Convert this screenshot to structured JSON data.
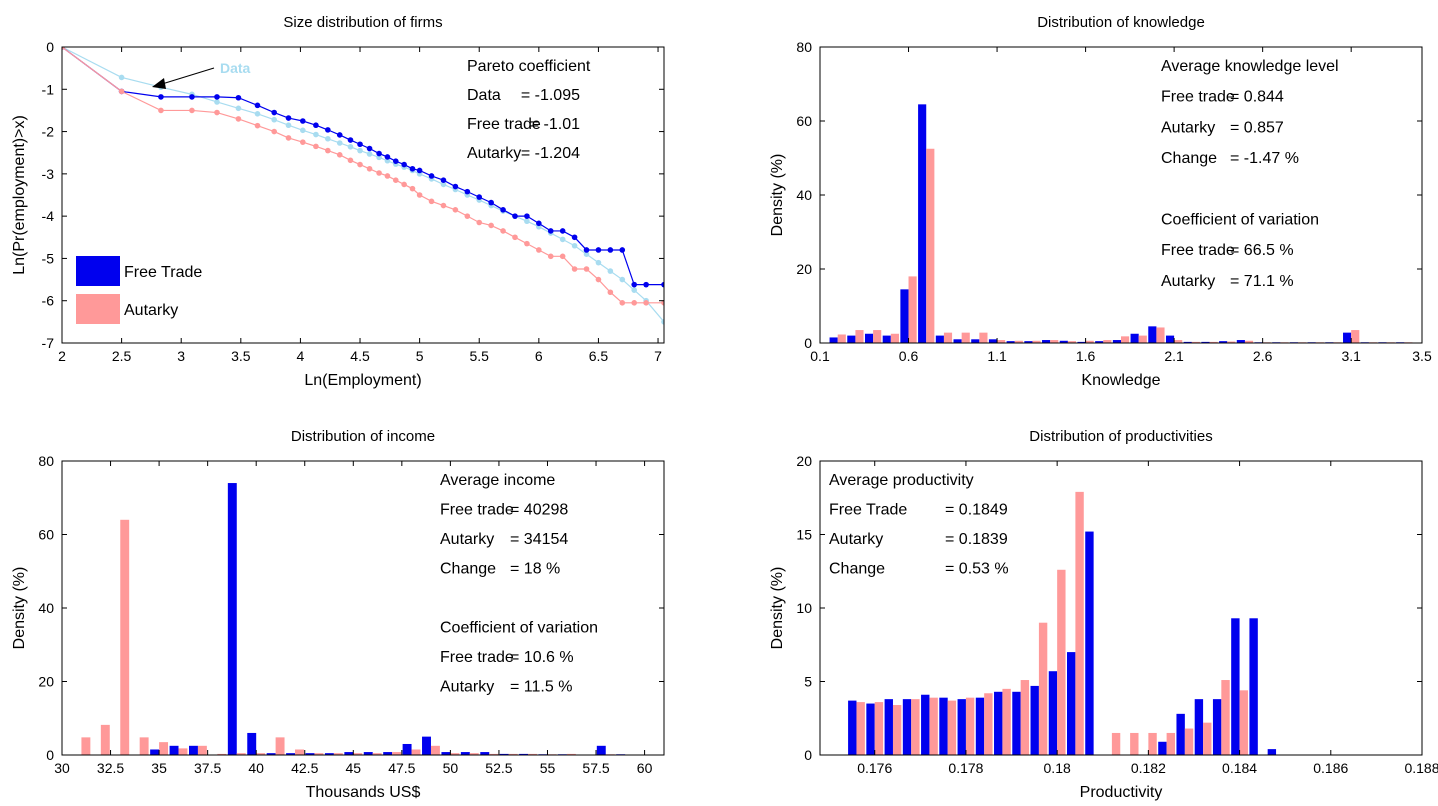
{
  "colors": {
    "free_trade": "#0000ee",
    "autarky": "#ff9999",
    "data": "#a8dcf0"
  },
  "chart_data": [
    {
      "id": "size",
      "type": "line",
      "title": "Size distribution of firms",
      "xlabel": "Ln(Employment)",
      "ylabel": "Ln(Pr(employment)>x)",
      "xlim": [
        2,
        7.05
      ],
      "ylim": [
        -7,
        0
      ],
      "xticks": [
        2,
        2.5,
        3,
        3.5,
        4,
        4.5,
        5,
        5.5,
        6,
        6.5,
        7
      ],
      "xtick_labels": [
        "2",
        "2.5",
        "3",
        "3.5",
        "4",
        "4.5",
        "5",
        "5.5",
        "6",
        "6.5",
        "7"
      ],
      "yticks": [
        0,
        -1,
        -2,
        -3,
        -4,
        -5,
        -6,
        -7
      ],
      "ytick_labels": [
        "0",
        "-1",
        "-2",
        "-3",
        "-4",
        "-5",
        "-6",
        "-7"
      ],
      "legend": {
        "placement": "bottom-left",
        "entries": [
          "Free Trade",
          "Autarky"
        ]
      },
      "arrow_label": "Data",
      "series": [
        {
          "name": "Data",
          "color_key": "data",
          "style": "marker-line",
          "x": [
            2,
            2.5,
            2.83,
            3.09,
            3.3,
            3.48,
            3.64,
            3.78,
            3.9,
            4.02,
            4.13,
            4.23,
            4.33,
            4.42,
            4.5,
            4.58,
            4.66,
            4.73,
            4.8,
            4.87,
            4.94,
            5.0,
            5.1,
            5.2,
            5.3,
            5.4,
            5.5,
            5.6,
            5.7,
            5.8,
            5.9,
            6.0,
            6.1,
            6.2,
            6.3,
            6.4,
            6.5,
            6.6,
            6.7,
            6.8,
            6.9,
            7.05
          ],
          "y": [
            0,
            -0.72,
            -0.95,
            -1.12,
            -1.3,
            -1.45,
            -1.58,
            -1.72,
            -1.85,
            -1.97,
            -2.07,
            -2.17,
            -2.27,
            -2.36,
            -2.45,
            -2.53,
            -2.61,
            -2.69,
            -2.77,
            -2.84,
            -2.92,
            -3.0,
            -3.12,
            -3.25,
            -3.37,
            -3.5,
            -3.62,
            -3.75,
            -3.88,
            -4.0,
            -4.12,
            -4.25,
            -4.4,
            -4.55,
            -4.7,
            -4.9,
            -5.1,
            -5.3,
            -5.5,
            -5.75,
            -6.0,
            -6.5
          ]
        },
        {
          "name": "Free Trade",
          "color_key": "free_trade",
          "style": "step-marker",
          "x": [
            2,
            2.5,
            2.83,
            3.09,
            3.3,
            3.48,
            3.64,
            3.78,
            3.9,
            4.02,
            4.13,
            4.23,
            4.33,
            4.42,
            4.5,
            4.58,
            4.66,
            4.73,
            4.8,
            4.87,
            4.94,
            5.0,
            5.1,
            5.2,
            5.3,
            5.4,
            5.5,
            5.6,
            5.7,
            5.8,
            5.9,
            6.0,
            6.1,
            6.2,
            6.3,
            6.4,
            6.5,
            6.6,
            6.7,
            6.8,
            6.9,
            7.05
          ],
          "y": [
            0,
            -1.05,
            -1.18,
            -1.18,
            -1.18,
            -1.2,
            -1.38,
            -1.55,
            -1.68,
            -1.75,
            -1.85,
            -1.96,
            -2.08,
            -2.2,
            -2.3,
            -2.4,
            -2.52,
            -2.6,
            -2.7,
            -2.78,
            -2.88,
            -2.92,
            -3.05,
            -3.15,
            -3.3,
            -3.42,
            -3.55,
            -3.68,
            -3.85,
            -4.0,
            -4.0,
            -4.17,
            -4.35,
            -4.35,
            -4.5,
            -4.8,
            -4.8,
            -4.8,
            -4.8,
            -5.62,
            -5.62,
            -5.62
          ]
        },
        {
          "name": "Autarky",
          "color_key": "autarky",
          "style": "step-marker",
          "x": [
            2,
            2.5,
            2.83,
            3.09,
            3.3,
            3.48,
            3.64,
            3.78,
            3.9,
            4.02,
            4.13,
            4.23,
            4.33,
            4.42,
            4.5,
            4.58,
            4.66,
            4.73,
            4.8,
            4.87,
            4.94,
            5.0,
            5.1,
            5.2,
            5.3,
            5.4,
            5.5,
            5.6,
            5.7,
            5.8,
            5.9,
            6.0,
            6.1,
            6.2,
            6.3,
            6.4,
            6.5,
            6.6,
            6.7,
            6.8,
            6.9,
            7.05
          ],
          "y": [
            0,
            -1.05,
            -1.5,
            -1.5,
            -1.55,
            -1.7,
            -1.86,
            -2.0,
            -2.15,
            -2.25,
            -2.35,
            -2.45,
            -2.55,
            -2.68,
            -2.78,
            -2.88,
            -2.98,
            -3.05,
            -3.15,
            -3.25,
            -3.35,
            -3.5,
            -3.65,
            -3.75,
            -3.85,
            -4.0,
            -4.15,
            -4.22,
            -4.35,
            -4.5,
            -4.65,
            -4.8,
            -4.95,
            -4.95,
            -5.25,
            -5.25,
            -5.5,
            -5.8,
            -6.05,
            -6.05,
            -6.05,
            -6.05
          ]
        }
      ],
      "annotation_lines": [
        [
          "Pareto coefficient",
          ""
        ],
        [
          "Data",
          "= -1.095"
        ],
        [
          "Free trade",
          "= -1.01"
        ],
        [
          "Autarky",
          "= -1.204"
        ]
      ]
    },
    {
      "id": "knowledge",
      "type": "bar",
      "title": "Distribution of knowledge",
      "xlabel": "Knowledge",
      "ylabel": "Density (%)",
      "xlim": [
        0.1,
        3.5
      ],
      "ylim": [
        0,
        80
      ],
      "xticks": [
        0.1,
        0.6,
        1.1,
        1.6,
        2.1,
        2.6,
        3.1,
        3.5
      ],
      "xtick_labels": [
        "0.1",
        "0.6",
        "1.1",
        "1.6",
        "2.1",
        "2.6",
        "3.1",
        "3.5"
      ],
      "yticks": [
        0,
        20,
        40,
        60,
        80
      ],
      "ytick_labels": [
        "0",
        "20",
        "40",
        "60",
        "80"
      ],
      "bin_width": 0.1,
      "bin_centers": [
        0.2,
        0.3,
        0.4,
        0.5,
        0.6,
        0.7,
        0.8,
        0.9,
        1.0,
        1.1,
        1.2,
        1.3,
        1.4,
        1.5,
        1.6,
        1.7,
        1.8,
        1.9,
        2.0,
        2.1,
        2.2,
        2.3,
        2.4,
        2.5,
        2.6,
        2.7,
        2.8,
        2.9,
        3.0,
        3.1,
        3.2,
        3.3,
        3.4
      ],
      "series": [
        {
          "name": "Free trade",
          "color_key": "free_trade",
          "values": [
            1.5,
            2.0,
            2.5,
            2.0,
            14.5,
            64.5,
            2.0,
            1.0,
            1.0,
            1.0,
            0.5,
            0.5,
            0.8,
            0.6,
            0.3,
            0.5,
            0.8,
            2.5,
            4.5,
            2.0,
            0.3,
            0.3,
            0.5,
            0.8,
            0.2,
            0.2,
            0.2,
            0.2,
            0.2,
            2.8,
            0.2,
            0.2,
            0.2
          ]
        },
        {
          "name": "Autarky",
          "color_key": "autarky",
          "values": [
            2.3,
            3.5,
            3.5,
            2.5,
            18.0,
            52.5,
            2.8,
            2.8,
            2.8,
            0.8,
            0.6,
            0.6,
            0.8,
            0.5,
            0.6,
            0.8,
            1.8,
            2.0,
            4.2,
            0.8,
            0.3,
            0.3,
            0.4,
            0.6,
            0.2,
            0.2,
            0.2,
            0.2,
            0.2,
            3.5,
            0.2,
            0.2,
            0.2
          ]
        }
      ],
      "annotation_lines": [
        [
          "Average knowledge level",
          ""
        ],
        [
          "Free trade",
          "= 0.844"
        ],
        [
          "Autarky",
          "= 0.857"
        ],
        [
          "Change",
          "= -1.47 %"
        ],
        [
          "",
          ""
        ],
        [
          "Coefficient of variation",
          ""
        ],
        [
          "Free trade",
          "= 66.5 %"
        ],
        [
          "Autarky",
          "= 71.1 %"
        ]
      ]
    },
    {
      "id": "income",
      "type": "bar",
      "title": "Distribution of income",
      "xlabel": "Thousands US$",
      "ylabel": "Density (%)",
      "xlim": [
        30,
        61
      ],
      "ylim": [
        0,
        80
      ],
      "xticks": [
        30,
        32.5,
        35,
        37.5,
        40,
        42.5,
        45,
        47.5,
        50,
        52.5,
        55,
        57.5,
        60
      ],
      "xtick_labels": [
        "30",
        "32.5",
        "35",
        "37.5",
        "40",
        "42.5",
        "45",
        "47.5",
        "50",
        "52.5",
        "55",
        "57.5",
        "60"
      ],
      "yticks": [
        0,
        20,
        40,
        60,
        80
      ],
      "ytick_labels": [
        "0",
        "20",
        "40",
        "60",
        "80"
      ],
      "bin_width": 1.0,
      "bin_centers": [
        31,
        32,
        33,
        34,
        35,
        36,
        37,
        38,
        39,
        40,
        41,
        42,
        43,
        44,
        45,
        46,
        47,
        48,
        49,
        50,
        51,
        52,
        53,
        54,
        55,
        56,
        57,
        58,
        59,
        60
      ],
      "series": [
        {
          "name": "Free trade",
          "color_key": "free_trade",
          "values": [
            0,
            0,
            0,
            0,
            1.5,
            2.5,
            2.5,
            0,
            74,
            6,
            0.5,
            0.5,
            0.5,
            0.5,
            0.8,
            0.8,
            0.8,
            3.0,
            5.0,
            0.8,
            0.8,
            0.8,
            0.3,
            0.3,
            0.2,
            0.2,
            0,
            2.5,
            0.2,
            0
          ]
        },
        {
          "name": "Autarky",
          "color_key": "autarky",
          "values": [
            4.8,
            8.2,
            64,
            4.8,
            3.5,
            1.8,
            2.5,
            0.3,
            0.5,
            0.5,
            4.8,
            1.5,
            0.5,
            0.5,
            0.5,
            0.5,
            0.8,
            1.5,
            2.5,
            0.5,
            0.5,
            0.3,
            0.3,
            0.3,
            0.2,
            0.3,
            0,
            0.2,
            0,
            0
          ]
        }
      ],
      "annotation_lines": [
        [
          "Average income",
          ""
        ],
        [
          "Free trade",
          "= 40298"
        ],
        [
          "Autarky",
          "= 34154"
        ],
        [
          "Change",
          "= 18 %"
        ],
        [
          "",
          ""
        ],
        [
          "Coefficient of variation",
          ""
        ],
        [
          "Free trade",
          "= 10.6 %"
        ],
        [
          "Autarky",
          "= 11.5 %"
        ]
      ]
    },
    {
      "id": "productivity",
      "type": "bar",
      "title": "Distribution of productivities",
      "xlabel": "Productivity",
      "ylabel": "Density (%)",
      "xlim": [
        0.1748,
        0.188
      ],
      "ylim": [
        0,
        20
      ],
      "xticks": [
        0.176,
        0.178,
        0.18,
        0.182,
        0.184,
        0.186,
        0.188
      ],
      "xtick_labels": [
        "0.176",
        "0.178",
        "0.18",
        "0.182",
        "0.184",
        "0.186",
        "0.188"
      ],
      "yticks": [
        0,
        5,
        10,
        15,
        20
      ],
      "ytick_labels": [
        "0",
        "5",
        "10",
        "15",
        "20"
      ],
      "bin_width": 0.0004,
      "bin_centers": [
        0.1756,
        0.176,
        0.1764,
        0.1768,
        0.1772,
        0.1776,
        0.178,
        0.1784,
        0.1788,
        0.1792,
        0.1796,
        0.18,
        0.1804,
        0.1808,
        0.1812,
        0.1816,
        0.182,
        0.1824,
        0.1828,
        0.1832,
        0.1836,
        0.184,
        0.1844,
        0.1848,
        0.1852,
        0.1856,
        0.186,
        0.1864,
        0.1868,
        0.1872
      ],
      "series": [
        {
          "name": "Free Trade",
          "color_key": "free_trade",
          "values": [
            3.7,
            3.5,
            3.8,
            3.8,
            4.1,
            3.9,
            3.8,
            3.9,
            4.3,
            4.3,
            4.7,
            5.7,
            7.0,
            15.2,
            0,
            0,
            0,
            0.9,
            2.8,
            3.8,
            3.8,
            9.3,
            9.3,
            0.4,
            0,
            0,
            0,
            0,
            0,
            0
          ]
        },
        {
          "name": "Autarky",
          "color_key": "autarky",
          "values": [
            3.6,
            3.6,
            3.4,
            3.8,
            3.9,
            3.7,
            3.9,
            4.2,
            4.5,
            5.1,
            9.0,
            12.6,
            17.9,
            0,
            1.5,
            1.5,
            1.5,
            1.5,
            1.8,
            2.2,
            5.1,
            4.4,
            0,
            0,
            0,
            0,
            0,
            0,
            0,
            0
          ]
        }
      ],
      "annotation_lines": [
        [
          "Average productivity",
          ""
        ],
        [
          "Free Trade",
          "= 0.1849"
        ],
        [
          "Autarky",
          "= 0.1839"
        ],
        [
          "Change",
          "= 0.53 %"
        ]
      ]
    }
  ]
}
